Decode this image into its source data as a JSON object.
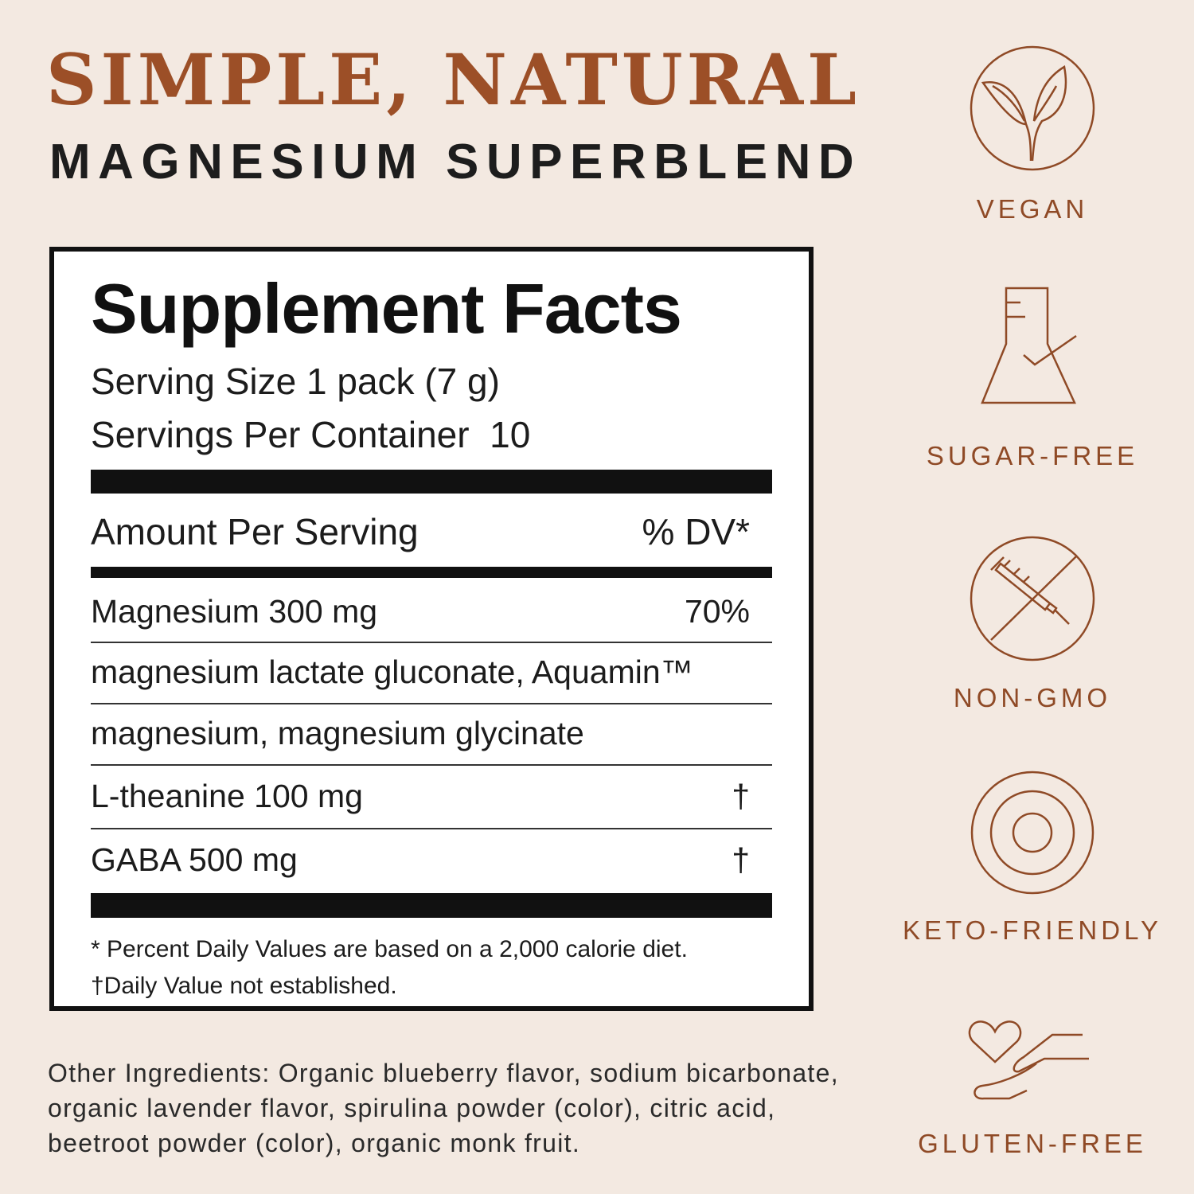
{
  "header": {
    "title": "SIMPLE, NATURAL",
    "subtitle": "MAGNESIUM SUPERBLEND"
  },
  "facts": {
    "title": "Supplement Facts",
    "serving_size": "Serving Size 1 pack (7 g)",
    "servings_per_container": "Servings Per Container  10",
    "amount_header": "Amount Per Serving",
    "dv_header": "% DV*",
    "rows": [
      {
        "name": "Magnesium 300 mg",
        "dv": "70%"
      },
      {
        "name": "magnesium lactate gluconate, Aquamin™",
        "dv": ""
      },
      {
        "name": "magnesium, magnesium glycinate",
        "dv": ""
      },
      {
        "name": "L-theanine 100 mg",
        "dv": "†"
      },
      {
        "name": "GABA 500 mg",
        "dv": "†"
      }
    ],
    "footnote_1": "* Percent Daily Values are based on a 2,000 calorie diet.",
    "footnote_2": "†Daily Value not established."
  },
  "other_ingredients": "Other Ingredients: Organic blueberry flavor, sodium bicarbonate, organic lavender flavor, spirulina powder (color), citric acid, beetroot powder (color), organic monk fruit.",
  "badges": [
    {
      "label": "VEGAN",
      "icon": "leaf-sprout-icon"
    },
    {
      "label": "SUGAR-FREE",
      "icon": "flask-check-icon"
    },
    {
      "label": "NON-GMO",
      "icon": "no-syringe-icon"
    },
    {
      "label": "KETO-FRIENDLY",
      "icon": "concentric-circles-icon"
    },
    {
      "label": "GLUTEN-FREE",
      "icon": "heart-hand-icon"
    }
  ],
  "colors": {
    "background": "#f3e9e1",
    "accent": "#9c4f27",
    "icon": "#8f4a26",
    "text": "#1c1c1c"
  }
}
